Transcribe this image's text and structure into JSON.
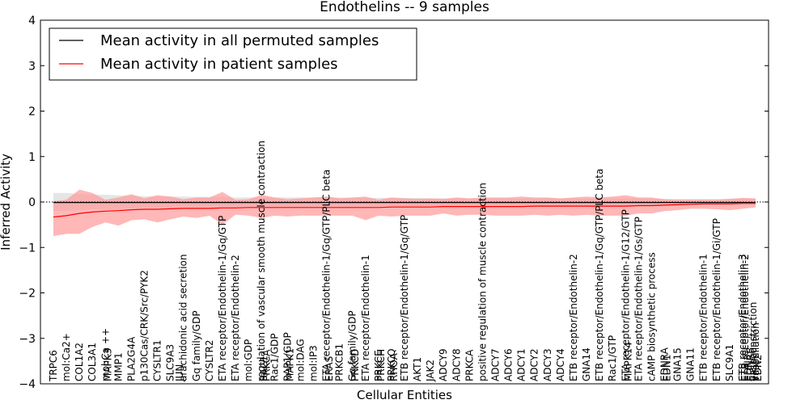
{
  "chart_data": {
    "type": "line",
    "title": "Endothelins -- 9 samples",
    "xlabel": "Cellular Entities",
    "ylabel": "Inferred Activity",
    "ylim": [
      -4,
      4
    ],
    "yticks": [
      -4,
      -3,
      -2,
      -1,
      0,
      1,
      2,
      3,
      4
    ],
    "ytick_labels": [
      "−4",
      "−3",
      "−2",
      "−1",
      "0",
      "1",
      "2",
      "3",
      "4"
    ],
    "legend_position": "top-left",
    "legend": [
      {
        "label": "Mean activity in all permuted samples",
        "color": "#000000"
      },
      {
        "label": "Mean activity in patient samples",
        "color": "#ff0000"
      }
    ],
    "x_count": 55,
    "entity_labels": [
      {
        "i": 0,
        "text": "TRPC6"
      },
      {
        "i": 1,
        "text": "mol:Ca2+"
      },
      {
        "i": 2,
        "text": "COL1A2"
      },
      {
        "i": 3,
        "text": "COL3A1"
      },
      {
        "i": 4,
        "text": "mol:Ca ++"
      },
      {
        "i": 4.2,
        "text": "MAPK3"
      },
      {
        "i": 5,
        "text": "MMP1"
      },
      {
        "i": 6,
        "text": "PLA2G4A"
      },
      {
        "i": 7,
        "text": "p130Cas/CRK/Src/PYK2"
      },
      {
        "i": 8,
        "text": "CYSLTR1"
      },
      {
        "i": 9,
        "text": "SLC9A3"
      },
      {
        "i": 10,
        "text": "arachidonic acid secretion"
      },
      {
        "i": 9.7,
        "text": "JUN"
      },
      {
        "i": 11,
        "text": "Gq family/GDP"
      },
      {
        "i": 12,
        "text": "CYSLTR2"
      },
      {
        "i": 13,
        "text": "ETA receptor/Endothelin-1/Gq/GTP"
      },
      {
        "i": 14,
        "text": "ETA receptor/Endothelin-2"
      },
      {
        "i": 15,
        "text": "mol:GDP"
      },
      {
        "i": 16,
        "text": "regulation of vascular smooth muscle contraction"
      },
      {
        "i": 16.2,
        "text": "RAC1"
      },
      {
        "i": 16.4,
        "text": "PRKCA"
      },
      {
        "i": 17,
        "text": "Rac1/GDP"
      },
      {
        "i": 18,
        "text": "RAP1/GDP"
      },
      {
        "i": 18.2,
        "text": "MAPK1"
      },
      {
        "i": 19,
        "text": "mol:DAG"
      },
      {
        "i": 20,
        "text": "mol:IP3"
      },
      {
        "i": 21,
        "text": "ETA receptor/Endothelin-1/Gq/GTP/PLC beta"
      },
      {
        "i": 21.2,
        "text": "ERAS"
      },
      {
        "i": 22,
        "text": "PRKCB1"
      },
      {
        "i": 23,
        "text": "Gq family/GDP"
      },
      {
        "i": 23.2,
        "text": "PRKCD"
      },
      {
        "i": 24,
        "text": "ETA receptor/Endothelin-1"
      },
      {
        "i": 25,
        "text": "PRKCE"
      },
      {
        "i": 25.2,
        "text": "PRKCH"
      },
      {
        "i": 26,
        "text": "PRKCQ"
      },
      {
        "i": 26.2,
        "text": "RHOA"
      },
      {
        "i": 27,
        "text": "ETB receptor/Endothelin-1/Gq/GTP"
      },
      {
        "i": 28,
        "text": "AKT1"
      },
      {
        "i": 29,
        "text": "JAK2"
      },
      {
        "i": 30,
        "text": "ADCY9"
      },
      {
        "i": 31,
        "text": "ADCY8"
      },
      {
        "i": 32,
        "text": "PRKCA"
      },
      {
        "i": 33,
        "text": "positive regulation of muscle contraction"
      },
      {
        "i": 34,
        "text": "ADCY7"
      },
      {
        "i": 35,
        "text": "ADCY6"
      },
      {
        "i": 36,
        "text": "ADCY1"
      },
      {
        "i": 37,
        "text": "ADCY2"
      },
      {
        "i": 38,
        "text": "ADCY3"
      },
      {
        "i": 39,
        "text": "ADCY4"
      },
      {
        "i": 40,
        "text": "ETB receptor/Endothelin-2"
      },
      {
        "i": 41,
        "text": "GNA14"
      },
      {
        "i": 42,
        "text": "ETB receptor/Endothelin-1/Gq/GTP/PLC beta"
      },
      {
        "i": 43,
        "text": "Rac1/GTP"
      },
      {
        "i": 44,
        "text": "ETA receptor/Endothelin-1/G12/GTP"
      },
      {
        "i": 44.2,
        "text": "MAPK14"
      },
      {
        "i": 45,
        "text": "ETA receptor/Endothelin-1/Gs/GTP"
      },
      {
        "i": 46,
        "text": "cAMP biosynthetic process"
      },
      {
        "i": 47,
        "text": "EDNRA"
      },
      {
        "i": 47.2,
        "text": "EDN1"
      },
      {
        "i": 48,
        "text": "GNA15"
      },
      {
        "i": 49,
        "text": "GNA11"
      },
      {
        "i": 50,
        "text": "ETB receptor/Endothelin-1"
      },
      {
        "i": 51,
        "text": "ETB receptor/Endothelin-1/Gi/GTP"
      },
      {
        "i": 52,
        "text": "SLC9A1"
      },
      {
        "i": 53,
        "text": "ETB receptor/Endothelin-3"
      },
      {
        "i": 53.2,
        "text": "ETB receptor/Endothelin-2"
      },
      {
        "i": 53.4,
        "text": "EDN3"
      },
      {
        "i": 53.6,
        "text": "EDNRB"
      },
      {
        "i": 53.8,
        "text": "vasoconstriction"
      },
      {
        "i": 54,
        "text": "vasodilation"
      },
      {
        "i": 54.2,
        "text": "EDN2"
      }
    ],
    "series": [
      {
        "name": "Mean activity in all permuted samples",
        "color": "#000000",
        "band_color": "#cccccc",
        "values": [
          -0.01,
          -0.01,
          -0.01,
          -0.01,
          -0.01,
          -0.01,
          -0.01,
          -0.01,
          -0.01,
          -0.01,
          -0.01,
          -0.01,
          -0.01,
          -0.01,
          -0.01,
          -0.01,
          -0.01,
          -0.01,
          -0.01,
          -0.01,
          -0.01,
          -0.01,
          -0.01,
          -0.01,
          -0.01,
          -0.01,
          -0.01,
          -0.01,
          -0.01,
          -0.01,
          -0.01,
          -0.01,
          -0.01,
          -0.01,
          -0.01,
          -0.01,
          -0.01,
          -0.01,
          -0.01,
          -0.01,
          -0.01,
          -0.01,
          -0.01,
          -0.01,
          -0.01,
          -0.01,
          -0.01,
          -0.01,
          -0.01,
          -0.01,
          -0.01,
          -0.01,
          -0.01,
          -0.01,
          -0.01
        ],
        "upper": [
          0.2,
          0.2,
          0.18,
          0.16,
          0.16,
          0.15,
          0.14,
          0.13,
          0.12,
          0.12,
          0.12,
          0.11,
          0.11,
          0.11,
          0.1,
          0.1,
          0.1,
          0.1,
          0.1,
          0.1,
          0.1,
          0.1,
          0.1,
          0.09,
          0.09,
          0.09,
          0.09,
          0.09,
          0.09,
          0.08,
          0.08,
          0.08,
          0.08,
          0.08,
          0.08,
          0.08,
          0.08,
          0.08,
          0.08,
          0.08,
          0.08,
          0.08,
          0.08,
          0.08,
          0.08,
          0.08,
          0.07,
          0.07,
          0.07,
          0.07,
          0.07,
          0.07,
          0.07,
          0.07,
          0.07
        ],
        "lower": [
          -0.2,
          -0.2,
          -0.18,
          -0.16,
          -0.16,
          -0.15,
          -0.14,
          -0.13,
          -0.12,
          -0.12,
          -0.12,
          -0.11,
          -0.11,
          -0.11,
          -0.1,
          -0.1,
          -0.1,
          -0.1,
          -0.1,
          -0.1,
          -0.1,
          -0.1,
          -0.1,
          -0.09,
          -0.09,
          -0.09,
          -0.09,
          -0.09,
          -0.09,
          -0.08,
          -0.08,
          -0.08,
          -0.08,
          -0.08,
          -0.08,
          -0.08,
          -0.08,
          -0.08,
          -0.08,
          -0.08,
          -0.08,
          -0.08,
          -0.08,
          -0.08,
          -0.08,
          -0.08,
          -0.07,
          -0.07,
          -0.07,
          -0.07,
          -0.07,
          -0.07,
          -0.07,
          -0.07,
          -0.07
        ]
      },
      {
        "name": "Mean activity in patient samples",
        "color": "#ff0000",
        "band_color": "#ff9999",
        "values": [
          -0.33,
          -0.3,
          -0.25,
          -0.22,
          -0.2,
          -0.19,
          -0.17,
          -0.16,
          -0.16,
          -0.15,
          -0.14,
          -0.14,
          -0.14,
          -0.13,
          -0.13,
          -0.12,
          -0.12,
          -0.12,
          -0.12,
          -0.12,
          -0.12,
          -0.12,
          -0.12,
          -0.12,
          -0.12,
          -0.12,
          -0.11,
          -0.11,
          -0.11,
          -0.11,
          -0.1,
          -0.1,
          -0.1,
          -0.1,
          -0.1,
          -0.1,
          -0.1,
          -0.09,
          -0.09,
          -0.09,
          -0.09,
          -0.09,
          -0.09,
          -0.09,
          -0.09,
          -0.08,
          -0.08,
          -0.07,
          -0.06,
          -0.05,
          -0.04,
          -0.04,
          -0.04,
          -0.03,
          -0.03
        ],
        "upper": [
          0.02,
          0.05,
          0.27,
          0.2,
          0.05,
          0.1,
          0.17,
          0.08,
          0.15,
          0.12,
          0.06,
          0.1,
          0.1,
          0.22,
          0.05,
          0.06,
          0.16,
          0.1,
          0.06,
          0.08,
          0.1,
          0.12,
          0.08,
          0.1,
          0.12,
          0.05,
          0.1,
          0.08,
          0.07,
          0.08,
          0.07,
          0.1,
          0.08,
          0.1,
          0.1,
          0.1,
          0.12,
          0.1,
          0.1,
          0.08,
          0.1,
          0.12,
          0.1,
          0.12,
          0.15,
          0.1,
          0.1,
          0.06,
          0.05,
          0.05,
          0.05,
          0.05,
          0.07,
          0.09,
          0.08
        ],
        "lower": [
          -0.75,
          -0.7,
          -0.7,
          -0.55,
          -0.45,
          -0.52,
          -0.4,
          -0.38,
          -0.45,
          -0.38,
          -0.32,
          -0.35,
          -0.3,
          -0.5,
          -0.28,
          -0.3,
          -0.35,
          -0.3,
          -0.32,
          -0.3,
          -0.3,
          -0.3,
          -0.3,
          -0.3,
          -0.4,
          -0.3,
          -0.32,
          -0.3,
          -0.3,
          -0.3,
          -0.25,
          -0.3,
          -0.28,
          -0.28,
          -0.3,
          -0.3,
          -0.3,
          -0.28,
          -0.3,
          -0.28,
          -0.3,
          -0.28,
          -0.3,
          -0.3,
          -0.3,
          -0.25,
          -0.25,
          -0.2,
          -0.18,
          -0.15,
          -0.15,
          -0.16,
          -0.18,
          -0.15,
          -0.12
        ]
      }
    ]
  }
}
